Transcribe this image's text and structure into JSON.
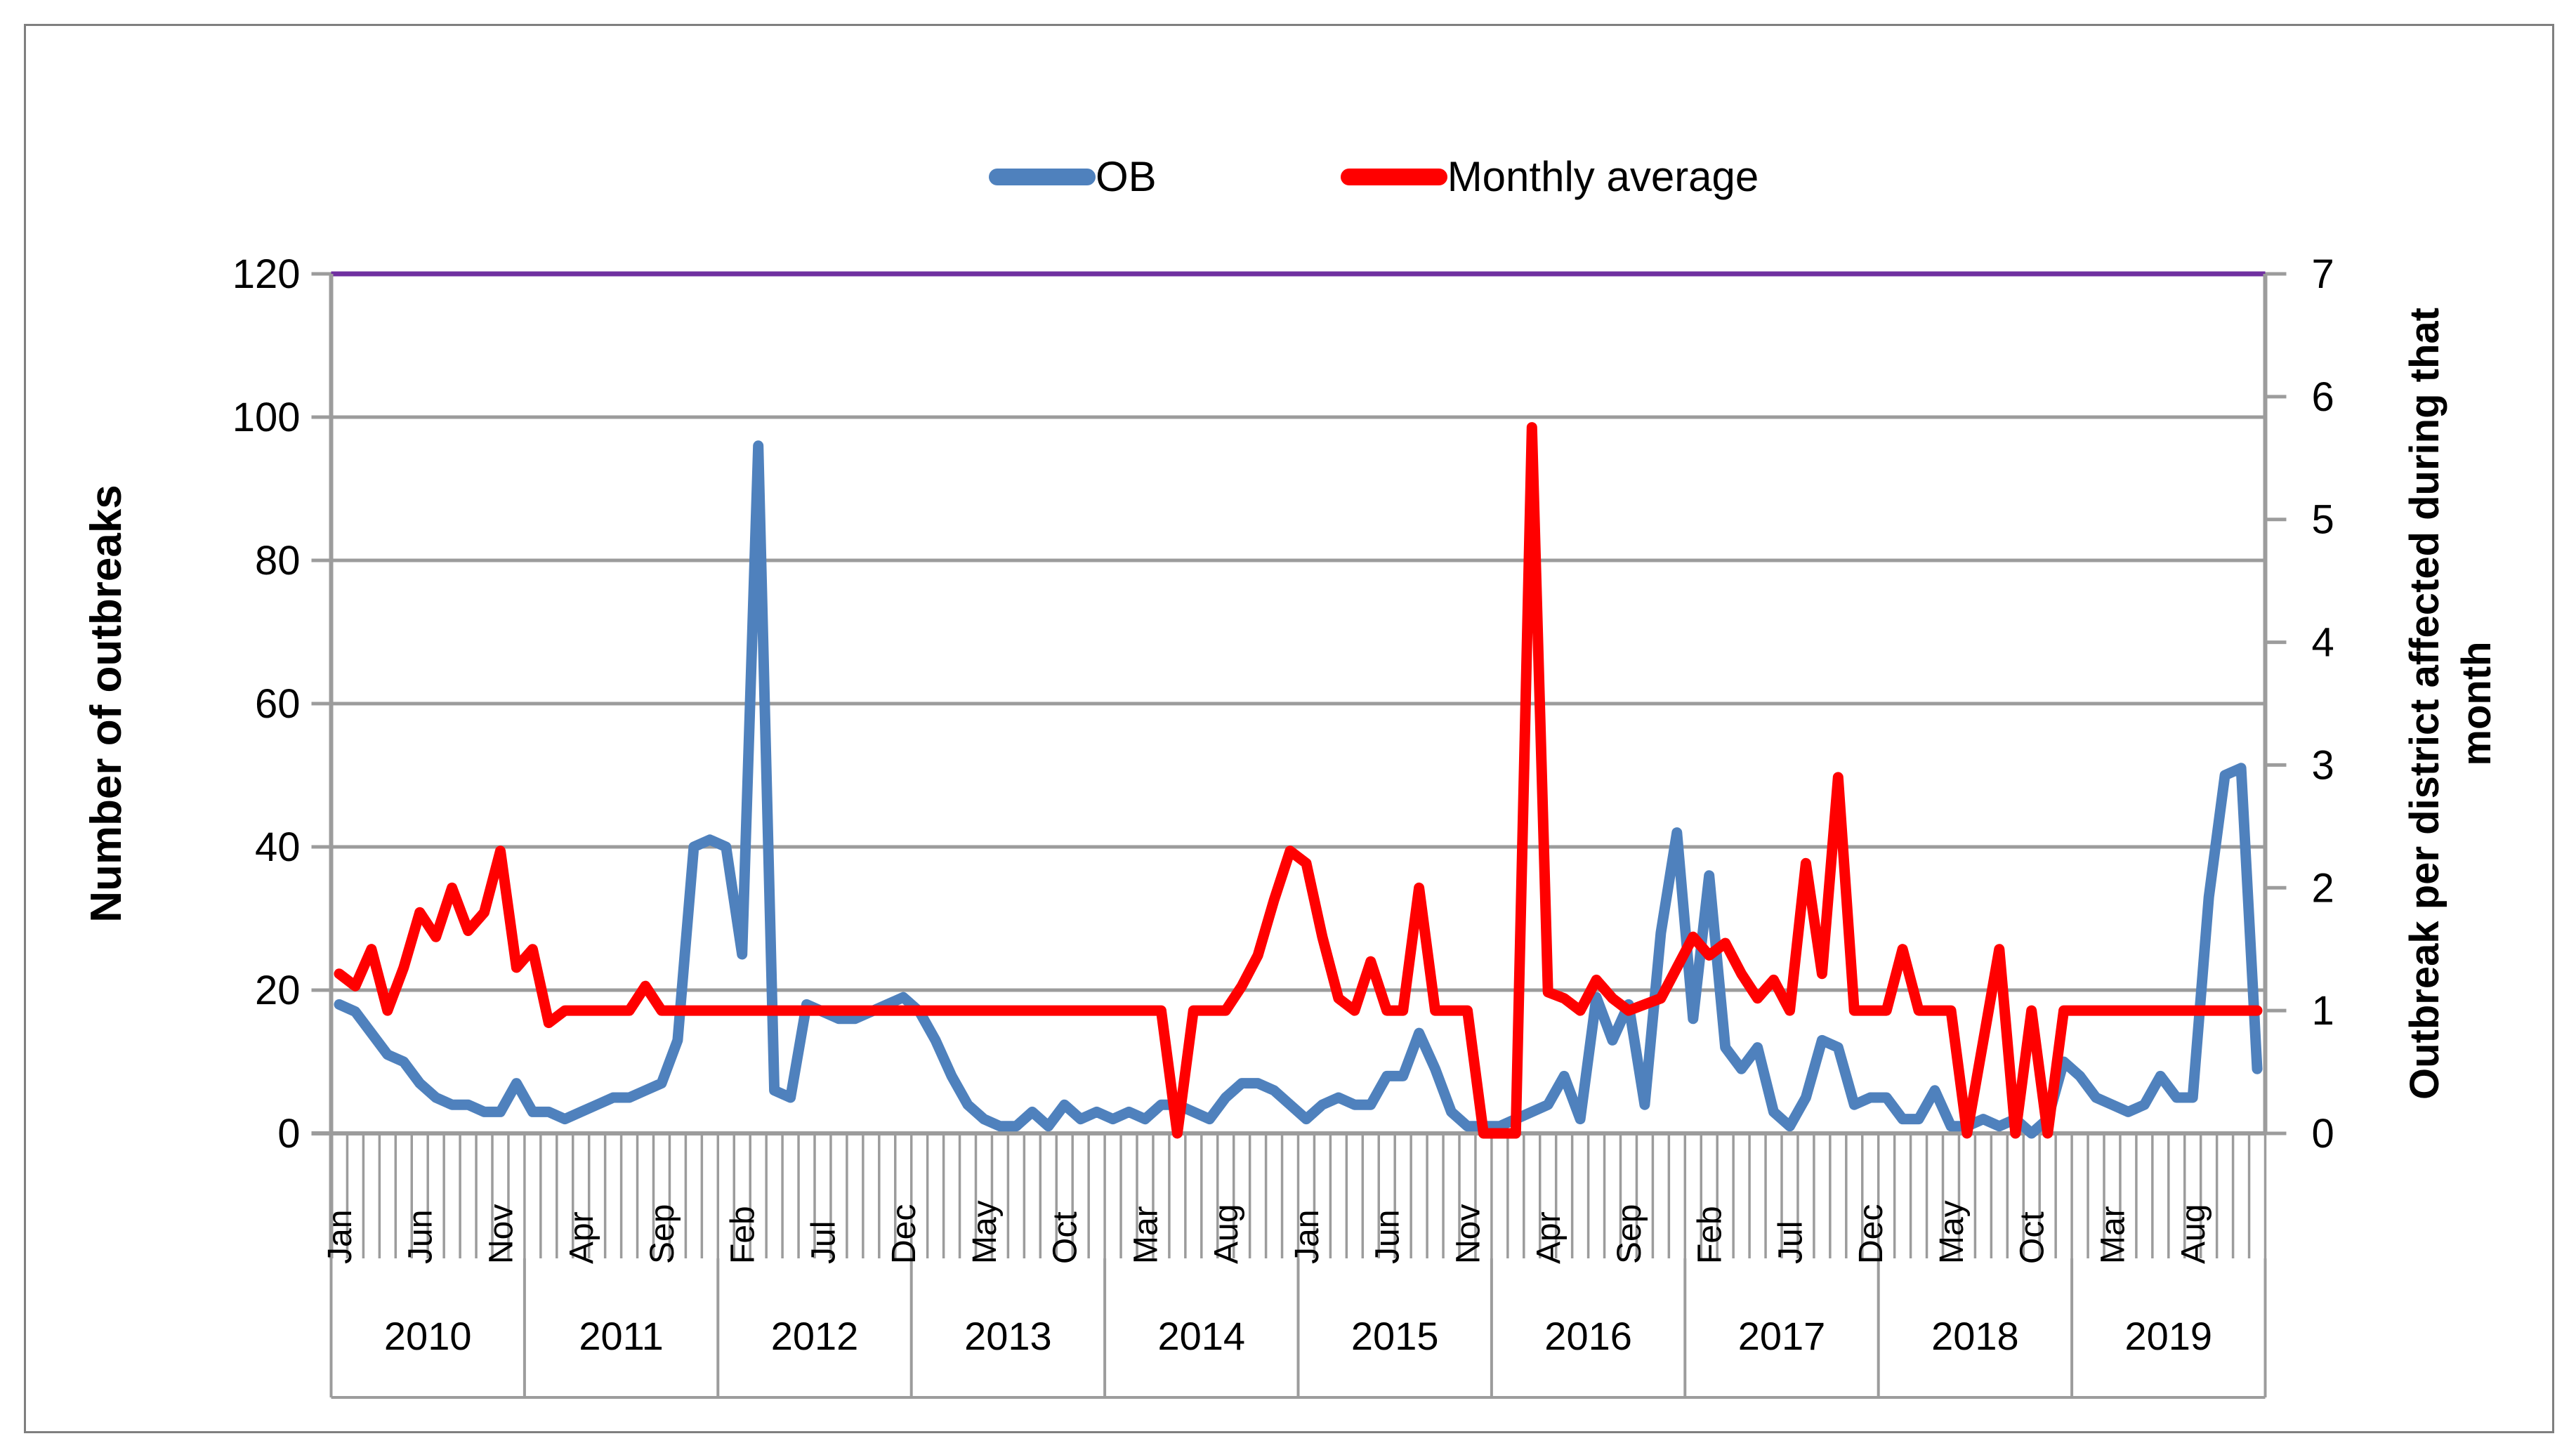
{
  "legend": {
    "items": [
      {
        "label": "OB",
        "color": "#4F81BD"
      },
      {
        "label": "Monthly average",
        "color": "#FF0000"
      }
    ]
  },
  "left_axis": {
    "title": "Number of outbreaks",
    "ticks": [
      "0",
      "20",
      "40",
      "60",
      "80",
      "100",
      "120"
    ]
  },
  "right_axis": {
    "title_lines": [
      "Outbreak per district affected during that",
      "month"
    ],
    "ticks": [
      "0",
      "1",
      "2",
      "3",
      "4",
      "5",
      "6",
      "7"
    ]
  },
  "x_axis": {
    "month_cycle": [
      "Jan",
      "Feb",
      "Mar",
      "Apr",
      "May",
      "Jun",
      "Jul",
      "Aug",
      "Sep",
      "Oct",
      "Nov",
      "Dec"
    ],
    "label_interval": 5,
    "years": [
      "2010",
      "2011",
      "2012",
      "2013",
      "2014",
      "2015",
      "2016",
      "2017",
      "2018",
      "2019"
    ]
  },
  "chart_data": {
    "type": "line",
    "title": "",
    "xlabel": "",
    "ylabel_left": "Number of outbreaks",
    "ylabel_right": "Outbreak per district affected during that month",
    "x_month_count": 120,
    "x_start": "Jan 2010",
    "x_end": "Dec 2019",
    "left_ylim": [
      0,
      120
    ],
    "right_ylim": [
      0,
      7
    ],
    "grid": true,
    "legend_position": "top",
    "ceiling_line": {
      "value": 120,
      "axis": "left",
      "color": "#7030A0"
    },
    "series": [
      {
        "name": "OB",
        "axis": "left",
        "color": "#4F81BD",
        "values": [
          18,
          17,
          14,
          11,
          10,
          7,
          5,
          4,
          4,
          3,
          3,
          7,
          3,
          3,
          2,
          3,
          4,
          5,
          5,
          6,
          7,
          13,
          40,
          41,
          40,
          25,
          96,
          6,
          5,
          18,
          17,
          16,
          16,
          17,
          18,
          19,
          17,
          13,
          8,
          4,
          2,
          1,
          1,
          3,
          1,
          4,
          2,
          3,
          2,
          3,
          2,
          4,
          4,
          3,
          2,
          5,
          7,
          7,
          6,
          4,
          2,
          4,
          5,
          4,
          4,
          8,
          8,
          14,
          9,
          3,
          1,
          1,
          1,
          2,
          3,
          4,
          8,
          2,
          19,
          13,
          18,
          4,
          28,
          42,
          16,
          36,
          12,
          9,
          12,
          3,
          1,
          5,
          13,
          12,
          4,
          5,
          5,
          2,
          2,
          6,
          1,
          1,
          2,
          1,
          2,
          0,
          2,
          10,
          8,
          5,
          4,
          3,
          4,
          8,
          5,
          5,
          33,
          50,
          51,
          9
        ]
      },
      {
        "name": "Monthly average",
        "axis": "right",
        "color": "#FF0000",
        "values": [
          1.3,
          1.2,
          1.5,
          1.0,
          1.35,
          1.8,
          1.6,
          2.0,
          1.65,
          1.8,
          2.3,
          1.35,
          1.5,
          0.9,
          1.0,
          1.0,
          1.0,
          1.0,
          1.0,
          1.2,
          1.0,
          1.0,
          1.0,
          1.0,
          1.0,
          1.0,
          1.0,
          1.0,
          1.0,
          1.0,
          1.0,
          1.0,
          1.0,
          1.0,
          1.0,
          1.0,
          1.0,
          1.0,
          1.0,
          1.0,
          1.0,
          1.0,
          1.0,
          1.0,
          1.0,
          1.0,
          1.0,
          1.0,
          1.0,
          1.0,
          1.0,
          1.0,
          0.0,
          1.0,
          1.0,
          1.0,
          1.2,
          1.45,
          1.9,
          2.3,
          2.2,
          1.6,
          1.1,
          1.0,
          1.4,
          1.0,
          1.0,
          2.0,
          1.0,
          1.0,
          1.0,
          0.0,
          0.0,
          0.0,
          5.75,
          1.15,
          1.1,
          1.0,
          1.25,
          1.1,
          1.0,
          1.05,
          1.1,
          1.35,
          1.6,
          1.45,
          1.55,
          1.3,
          1.1,
          1.25,
          1.0,
          2.2,
          1.3,
          2.9,
          1.0,
          1.0,
          1.0,
          1.5,
          1.0,
          1.0,
          1.0,
          0.0,
          0.75,
          1.5,
          0.0,
          1.0,
          0.0,
          1.0,
          1.0,
          1.0,
          1.0,
          1.0,
          1.0,
          1.0,
          1.0,
          1.0,
          1.0,
          1.0,
          1.0,
          1.0
        ]
      }
    ]
  },
  "colors": {
    "grid": "#9c9c9c",
    "axis": "#9c9c9c",
    "tick_text": "#000000",
    "border": "#7f7f7f"
  }
}
